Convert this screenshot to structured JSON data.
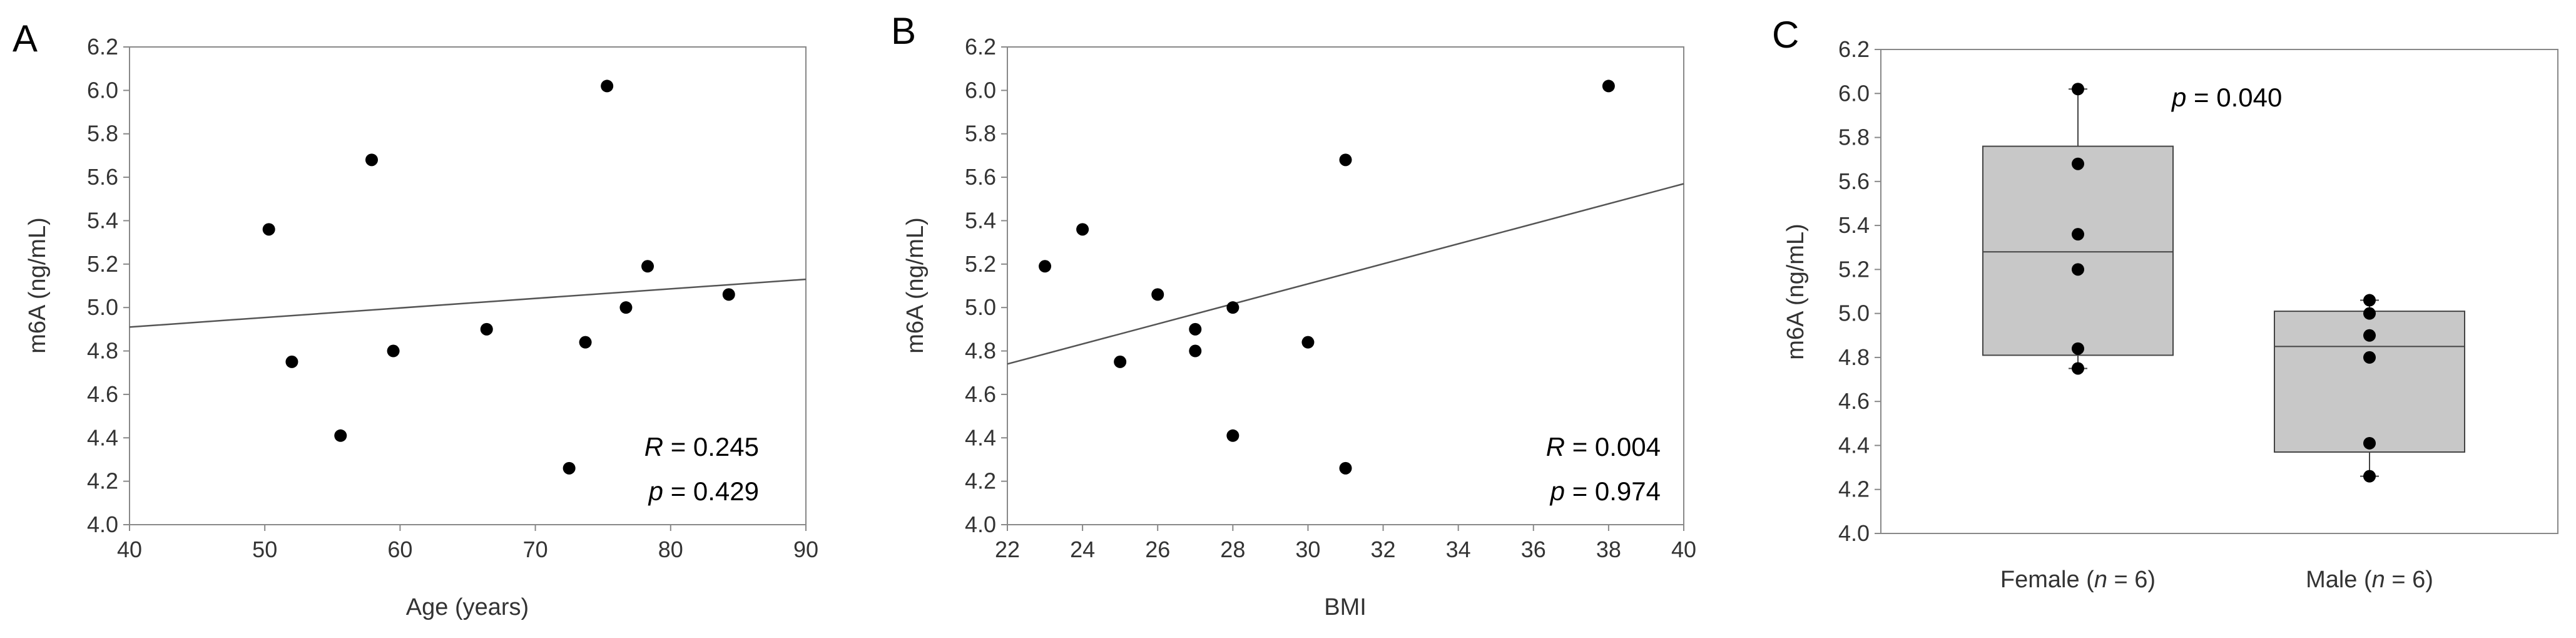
{
  "chart_data": [
    {
      "type": "scatter",
      "panel": "A",
      "xlabel": "Age (years)",
      "ylabel": "m6A (ng/mL)",
      "xlim": [
        40,
        90
      ],
      "ylim": [
        4.0,
        6.2
      ],
      "xticks": [
        "40",
        "50",
        "60",
        "70",
        "80",
        "90"
      ],
      "yticks": [
        "4.0",
        "4.2",
        "4.4",
        "4.6",
        "4.8",
        "5.0",
        "5.2",
        "5.4",
        "5.6",
        "5.8",
        "6.0",
        "6.2"
      ],
      "points": [
        {
          "x": 50.3,
          "y": 5.36
        },
        {
          "x": 52.0,
          "y": 4.75
        },
        {
          "x": 55.6,
          "y": 4.41
        },
        {
          "x": 57.9,
          "y": 5.68
        },
        {
          "x": 59.5,
          "y": 4.8
        },
        {
          "x": 66.4,
          "y": 4.9
        },
        {
          "x": 72.5,
          "y": 4.26
        },
        {
          "x": 73.7,
          "y": 4.84
        },
        {
          "x": 75.3,
          "y": 6.02
        },
        {
          "x": 76.7,
          "y": 5.0
        },
        {
          "x": 78.3,
          "y": 5.19
        },
        {
          "x": 84.3,
          "y": 5.06
        }
      ],
      "fit_line": {
        "x": [
          40,
          90
        ],
        "y": [
          4.91,
          5.13
        ]
      },
      "stats": {
        "r_label": "R",
        "r_text": " = 0.245",
        "p_label": "p",
        "p_text": " = 0.429"
      }
    },
    {
      "type": "scatter",
      "panel": "B",
      "xlabel": "BMI",
      "ylabel": "m6A (ng/mL)",
      "xlim": [
        22,
        40
      ],
      "ylim": [
        4.0,
        6.2
      ],
      "xticks": [
        "22",
        "24",
        "26",
        "28",
        "30",
        "32",
        "34",
        "36",
        "38",
        "40"
      ],
      "yticks": [
        "4.0",
        "4.2",
        "4.4",
        "4.6",
        "4.8",
        "5.0",
        "5.2",
        "5.4",
        "5.6",
        "5.8",
        "6.0",
        "6.2"
      ],
      "points": [
        {
          "x": 23,
          "y": 5.19
        },
        {
          "x": 24,
          "y": 5.36
        },
        {
          "x": 25,
          "y": 4.75
        },
        {
          "x": 26,
          "y": 5.06
        },
        {
          "x": 27,
          "y": 4.9
        },
        {
          "x": 27,
          "y": 4.8
        },
        {
          "x": 28,
          "y": 5.0
        },
        {
          "x": 28,
          "y": 4.41
        },
        {
          "x": 30,
          "y": 4.84
        },
        {
          "x": 31,
          "y": 5.68
        },
        {
          "x": 31,
          "y": 4.26
        },
        {
          "x": 38,
          "y": 6.02
        }
      ],
      "fit_line": {
        "x": [
          22,
          40
        ],
        "y": [
          4.74,
          5.57
        ]
      },
      "stats": {
        "r_label": "R",
        "r_text": " = 0.004",
        "p_label": "p",
        "p_text": " = 0.974"
      }
    },
    {
      "type": "box",
      "panel": "C",
      "ylabel": "m6A (ng/mL)",
      "ylim": [
        4.0,
        6.2
      ],
      "yticks": [
        "4.0",
        "4.2",
        "4.4",
        "4.6",
        "4.8",
        "5.0",
        "5.2",
        "5.4",
        "5.6",
        "5.8",
        "6.0",
        "6.2"
      ],
      "groups": [
        {
          "label_pre": "Female (",
          "label_n": "n",
          "label_post": " = 6)",
          "q1": 4.81,
          "median": 5.28,
          "q3": 5.76,
          "whisker_low": 4.75,
          "whisker_high": 6.02,
          "points": [
            6.02,
            5.68,
            5.36,
            5.2,
            4.84,
            4.75
          ]
        },
        {
          "label_pre": "Male (",
          "label_n": "n",
          "label_post": " = 6)",
          "q1": 4.37,
          "median": 4.85,
          "q3": 5.01,
          "whisker_low": 4.26,
          "whisker_high": 5.06,
          "points": [
            5.06,
            5.0,
            4.9,
            4.8,
            4.41,
            4.26
          ]
        }
      ],
      "box_color": "#c8c8c8",
      "stats": {
        "p_label": "p",
        "p_text": " = 0.040"
      }
    }
  ],
  "panels": {
    "a": {
      "letter": "A"
    },
    "b": {
      "letter": "B"
    },
    "c": {
      "letter": "C"
    }
  }
}
